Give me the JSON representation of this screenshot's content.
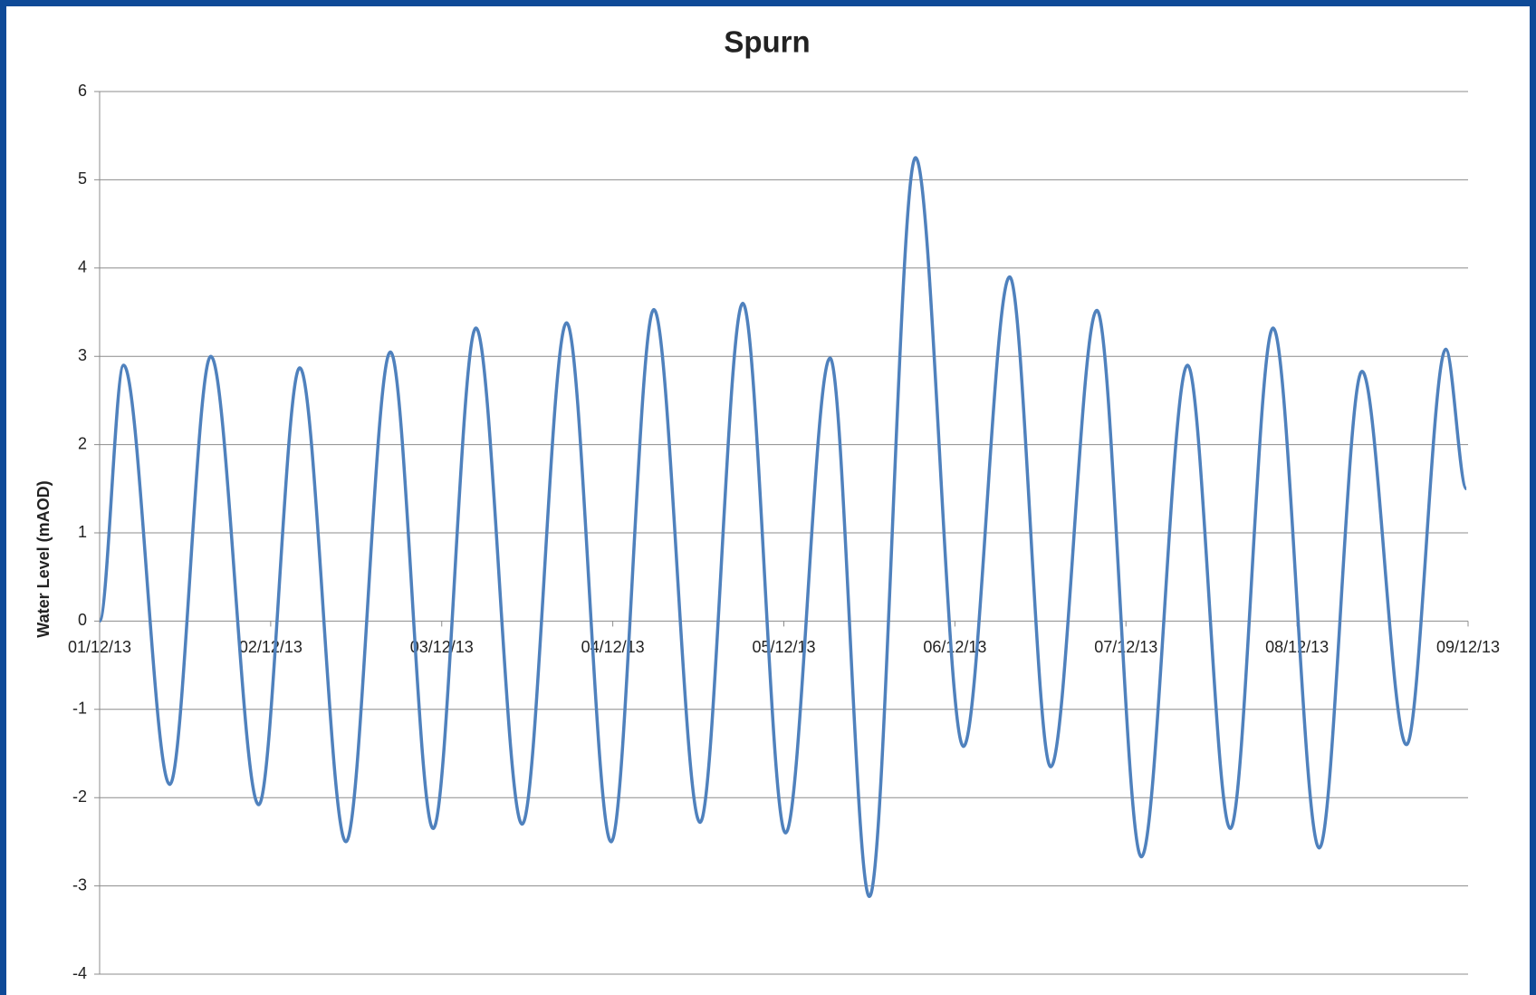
{
  "chart_data": {
    "type": "line",
    "title": "Spurn",
    "y_label": "Water Level (mAOD)",
    "xlim": [
      0,
      8
    ],
    "xticks": [
      {
        "value": 0,
        "label": "01/12/13"
      },
      {
        "value": 1,
        "label": "02/12/13"
      },
      {
        "value": 2,
        "label": "03/12/13"
      },
      {
        "value": 3,
        "label": "04/12/13"
      },
      {
        "value": 4,
        "label": "05/12/13"
      },
      {
        "value": 5,
        "label": "06/12/13"
      },
      {
        "value": 6,
        "label": "07/12/13"
      },
      {
        "value": 7,
        "label": "08/12/13"
      },
      {
        "value": 8,
        "label": "09/12/13"
      }
    ],
    "ylim": [
      -4,
      6
    ],
    "yticks": [
      -4,
      -3,
      -2,
      -1,
      0,
      1,
      2,
      3,
      4,
      5,
      6
    ],
    "grid": true,
    "x": [
      0,
      0.14,
      0.41,
      0.65,
      0.93,
      1.17,
      1.44,
      1.7,
      1.95,
      2.2,
      2.47,
      2.73,
      2.99,
      3.24,
      3.51,
      3.76,
      4.01,
      4.27,
      4.5,
      4.77,
      5.05,
      5.32,
      5.56,
      5.83,
      6.09,
      6.36,
      6.61,
      6.86,
      7.13,
      7.38,
      7.64,
      7.87,
      7.99
    ],
    "series": [
      {
        "name": "Spurn",
        "color": "#4f81bd",
        "values": [
          0,
          2.9,
          -1.85,
          3.0,
          -2.08,
          2.87,
          -2.5,
          3.05,
          -2.35,
          3.32,
          -2.3,
          3.38,
          -2.5,
          3.53,
          -2.28,
          3.6,
          -2.4,
          2.98,
          -3.12,
          5.25,
          -1.42,
          3.9,
          -1.65,
          3.52,
          -2.67,
          2.9,
          -2.35,
          3.32,
          -2.57,
          2.83,
          -1.4,
          3.08,
          1.5
        ]
      }
    ]
  }
}
